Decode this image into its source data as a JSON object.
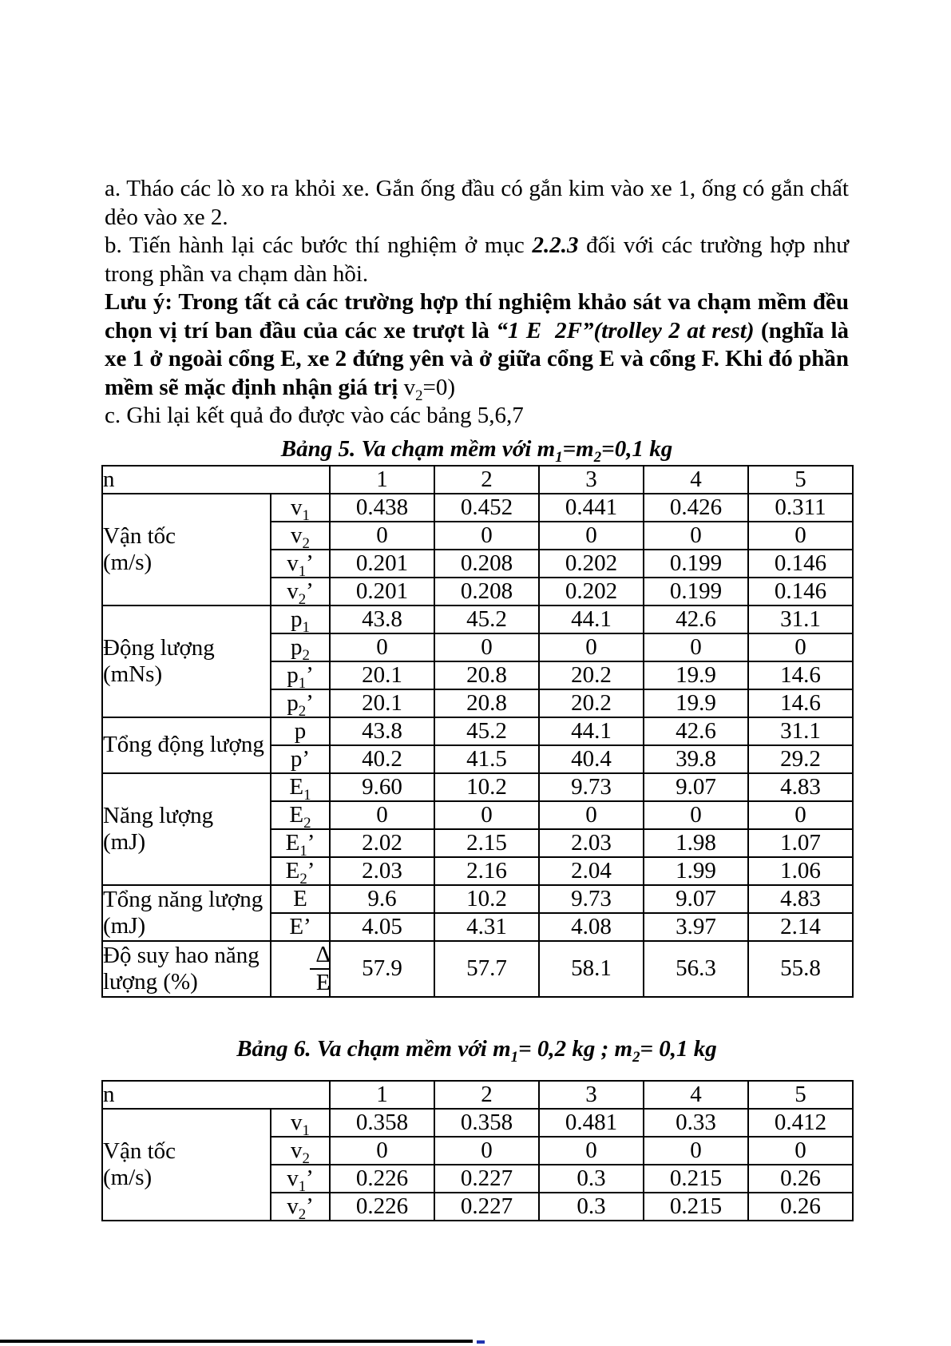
{
  "page": {
    "paragraphs": [
      {
        "name": "step-a",
        "segments": [
          {
            "t": "a. Tháo các lò xo ra khỏi xe. Gắn ống đầu có gắn kim vào xe 1, ống có gắn chất dẻo vào xe 2.",
            "s": "r"
          }
        ]
      },
      {
        "name": "step-b",
        "segments": [
          {
            "t": "b. Tiến hành lại các bước thí nghiệm ở mục ",
            "s": "r"
          },
          {
            "t": "2.2.3",
            "s": "bi"
          },
          {
            "t": " đối với các trường hợp như trong phần va chạm dàn hồi.",
            "s": "r"
          }
        ]
      },
      {
        "name": "note",
        "segments": [
          {
            "t": "Lưu ý: Trong tất cả các trường hợp thí nghiệm khảo sát va chạm mềm đều chọn vị trí ban đầu của các xe trượt là ",
            "s": "b"
          },
          {
            "t": "“1 E  2F”(trolley 2 at rest)",
            "s": "bi"
          },
          {
            "t": " (nghĩa là xe 1 ở ngoài cổng E, xe 2 đứng yên và ở giữa cổng E và cổng F. Khi đó phần mềm sẽ mặc định nhận giá trị ",
            "s": "b"
          },
          {
            "t": "v_2=0)",
            "s": "r"
          }
        ]
      },
      {
        "name": "step-c",
        "segments": [
          {
            "t": "c. Ghi lại kết quả đo được vào các bảng 5,6,7",
            "s": "r"
          }
        ]
      }
    ]
  },
  "table5": {
    "caption": "Bảng 5. Va chạm mềm với m_1=m_2=0,1 kg",
    "corner": "n",
    "trial_headers": [
      "1",
      "2",
      "3",
      "4",
      "5"
    ],
    "groups": [
      {
        "label": "Vận tốc\n(m/s)",
        "rows": [
          {
            "sub": "v_1",
            "values": [
              "0.438",
              "0.452",
              "0.441",
              "0.426",
              "0.311"
            ]
          },
          {
            "sub": "v_2",
            "values": [
              "0",
              "0",
              "0",
              "0",
              "0"
            ]
          },
          {
            "sub": "v_1’",
            "values": [
              "0.201",
              "0.208",
              "0.202",
              "0.199",
              "0.146"
            ]
          },
          {
            "sub": "v_2’",
            "values": [
              "0.201",
              "0.208",
              "0.202",
              "0.199",
              "0.146"
            ]
          }
        ]
      },
      {
        "label": "Động lượng\n(mNs)",
        "rows": [
          {
            "sub": "p_1",
            "values": [
              "43.8",
              "45.2",
              "44.1",
              "42.6",
              "31.1"
            ]
          },
          {
            "sub": "p_2",
            "values": [
              "0",
              "0",
              "0",
              "0",
              "0"
            ]
          },
          {
            "sub": "p_1’",
            "values": [
              "20.1",
              "20.8",
              "20.2",
              "19.9",
              "14.6"
            ]
          },
          {
            "sub": "p_2’",
            "values": [
              "20.1",
              "20.8",
              "20.2",
              "19.9",
              "14.6"
            ]
          }
        ]
      },
      {
        "label": "Tổng động lượng",
        "rows": [
          {
            "sub": "p",
            "values": [
              "43.8",
              "45.2",
              "44.1",
              "42.6",
              "31.1"
            ]
          },
          {
            "sub": "p’",
            "values": [
              "40.2",
              "41.5",
              "40.4",
              "39.8",
              "29.2"
            ]
          }
        ]
      },
      {
        "label": "Năng lượng\n(mJ)",
        "rows": [
          {
            "sub": "E_1",
            "values": [
              "9.60",
              "10.2",
              "9.73",
              "9.07",
              "4.83"
            ]
          },
          {
            "sub": "E_2",
            "values": [
              "0",
              "0",
              "0",
              "0",
              "0"
            ]
          },
          {
            "sub": "E_1’",
            "values": [
              "2.02",
              "2.15",
              "2.03",
              "1.98",
              "1.07"
            ]
          },
          {
            "sub": "E_2’",
            "values": [
              "2.03",
              "2.16",
              "2.04",
              "1.99",
              "1.06"
            ]
          }
        ]
      },
      {
        "label": "Tổng năng lượng\n(mJ)",
        "rows": [
          {
            "sub": "E",
            "values": [
              "9.6",
              "10.2",
              "9.73",
              "9.07",
              "4.83"
            ]
          },
          {
            "sub": "E’",
            "values": [
              "4.05",
              "4.31",
              "4.08",
              "3.97",
              "2.14"
            ]
          }
        ]
      },
      {
        "label": "Độ suy hao năng\nlượng (%)",
        "rows": [
          {
            "sub": "Δ|E",
            "values": [
              "57.9",
              "57.7",
              "58.1",
              "56.3",
              "55.8"
            ]
          }
        ]
      }
    ]
  },
  "table6": {
    "caption": "Bảng 6. Va chạm mềm với m_1= 0,2 kg ; m_2= 0,1 kg",
    "corner": "n",
    "trial_headers": [
      "1",
      "2",
      "3",
      "4",
      "5"
    ],
    "groups": [
      {
        "label": "Vận tốc\n(m/s)",
        "rows": [
          {
            "sub": "v_1",
            "values": [
              "0.358",
              "0.358",
              "0.481",
              "0.33",
              "0.412"
            ]
          },
          {
            "sub": "v_2",
            "values": [
              "0",
              "0",
              "0",
              "0",
              "0"
            ]
          },
          {
            "sub": "v_1’",
            "values": [
              "0.226",
              "0.227",
              "0.3",
              "0.215",
              "0.26"
            ]
          },
          {
            "sub": "v_2’",
            "values": [
              "0.226",
              "0.227",
              "0.3",
              "0.215",
              "0.26"
            ]
          }
        ]
      }
    ]
  },
  "footer_artifacts": {
    "rule_color": "#000000",
    "dash_color": "#2033b0"
  }
}
